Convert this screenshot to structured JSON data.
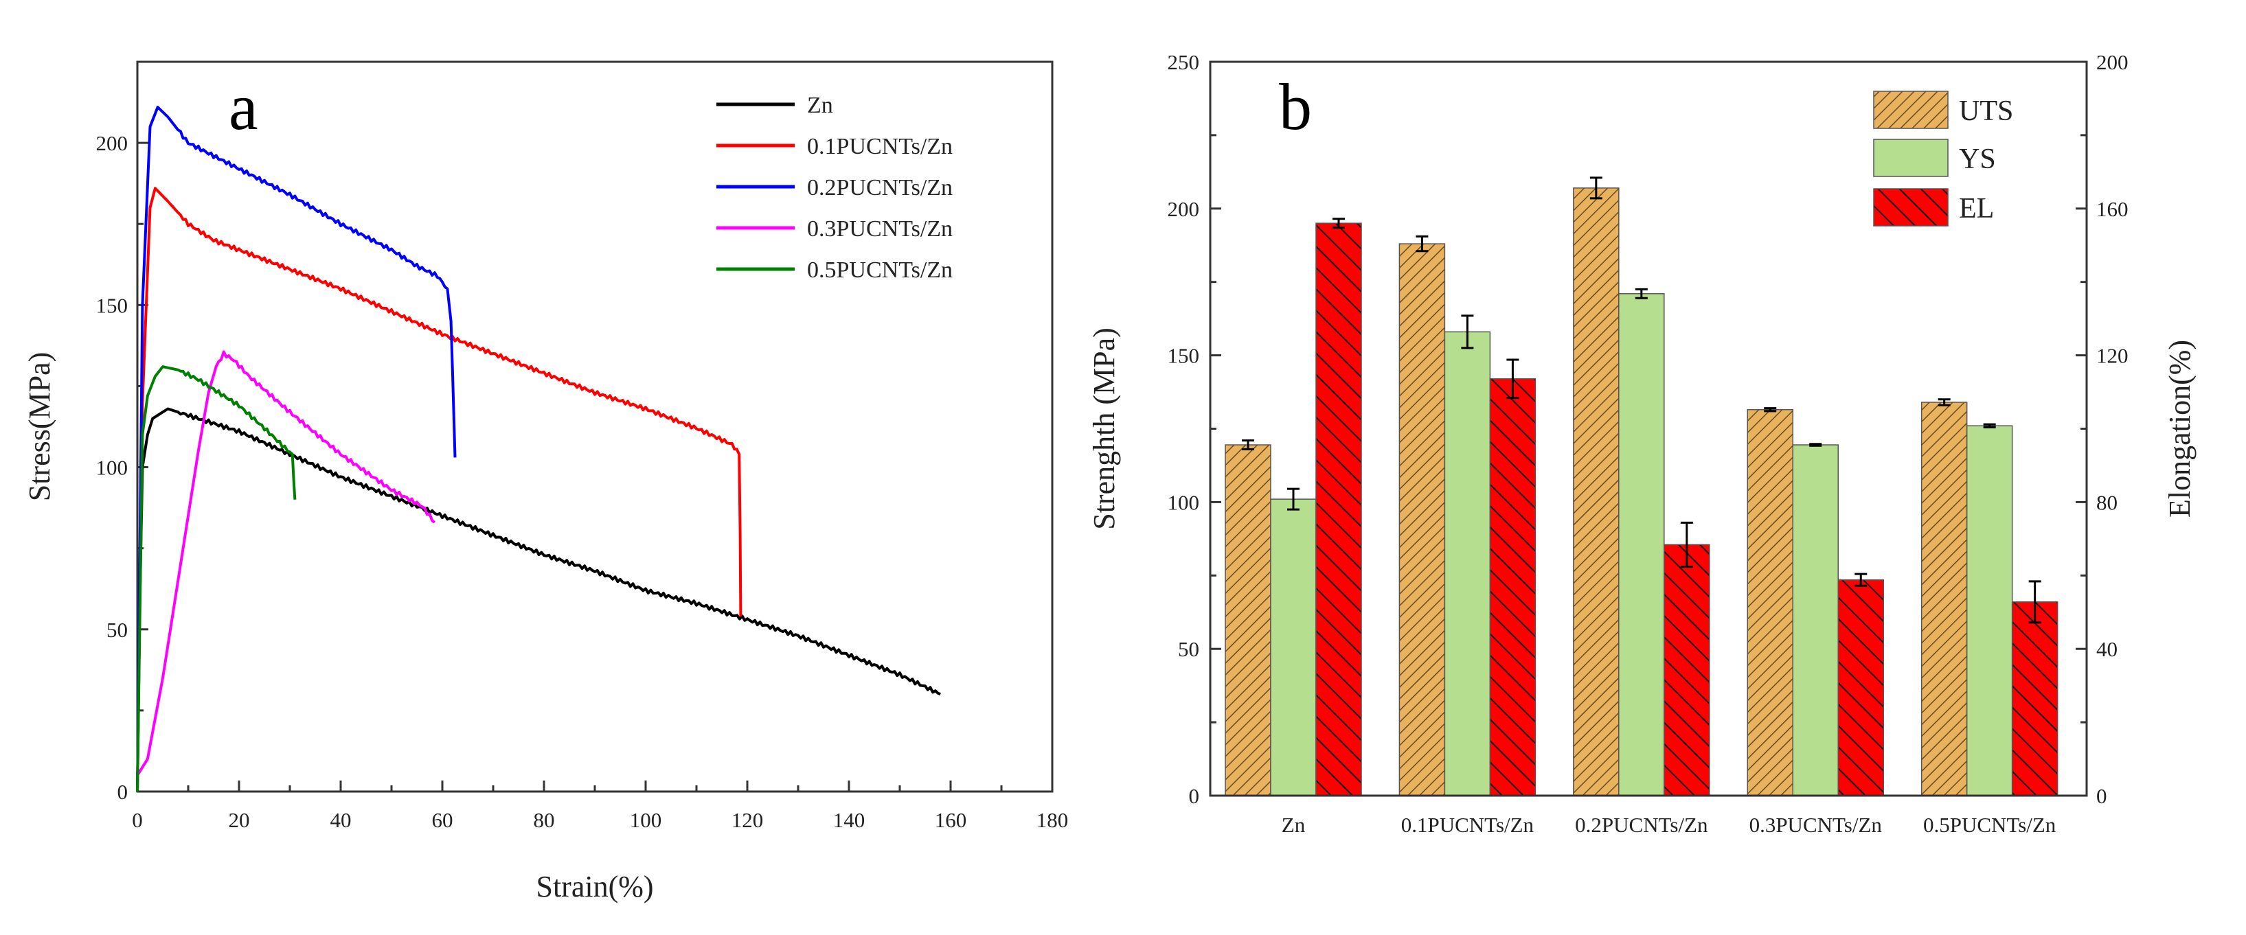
{
  "chart_data": [
    {
      "type": "line",
      "panel_label": "a",
      "xlabel": "Strain(%)",
      "ylabel": "Stress(MPa)",
      "xlim": [
        0,
        180
      ],
      "ylim": [
        0,
        225
      ],
      "xticks": [
        0,
        20,
        40,
        60,
        80,
        100,
        120,
        140,
        160,
        180
      ],
      "yticks": [
        0,
        50,
        100,
        150,
        200
      ],
      "legend_position": "top-right",
      "series": [
        {
          "name": "Zn",
          "color": "#000000",
          "points": [
            [
              0,
              0
            ],
            [
              0.5,
              60
            ],
            [
              1,
              100
            ],
            [
              2,
              110
            ],
            [
              3,
              115
            ],
            [
              6,
              118
            ],
            [
              10,
              116
            ],
            [
              20,
              111
            ],
            [
              30,
              104
            ],
            [
              40,
              97
            ],
            [
              50,
              91
            ],
            [
              60,
              85
            ],
            [
              70,
              79
            ],
            [
              80,
              73
            ],
            [
              90,
              68
            ],
            [
              100,
              62
            ],
            [
              110,
              58
            ],
            [
              120,
              53
            ],
            [
              130,
              48
            ],
            [
              140,
              42
            ],
            [
              150,
              36
            ],
            [
              158,
              30
            ]
          ]
        },
        {
          "name": "0.1PUCNTs/Zn",
          "color": "#FF0000",
          "points": [
            [
              0,
              0
            ],
            [
              1,
              120
            ],
            [
              2.5,
              180
            ],
            [
              3.5,
              186
            ],
            [
              6,
              182
            ],
            [
              10,
              175
            ],
            [
              15,
              170
            ],
            [
              20,
              167
            ],
            [
              30,
              161
            ],
            [
              40,
              155
            ],
            [
              50,
              148
            ],
            [
              60,
              141
            ],
            [
              70,
              135
            ],
            [
              80,
              129
            ],
            [
              90,
              123
            ],
            [
              100,
              118
            ],
            [
              110,
              112
            ],
            [
              117,
              107
            ],
            [
              118.4,
              104
            ],
            [
              118.6,
              80
            ],
            [
              118.7,
              54
            ]
          ]
        },
        {
          "name": "0.2PUCNTs/Zn",
          "color": "#0000FF",
          "points": [
            [
              0,
              0
            ],
            [
              1,
              150
            ],
            [
              2.5,
              205
            ],
            [
              4,
              211
            ],
            [
              6,
              208
            ],
            [
              10,
              200
            ],
            [
              20,
              192
            ],
            [
              30,
              184
            ],
            [
              40,
              175
            ],
            [
              50,
              167
            ],
            [
              55,
              162
            ],
            [
              59,
              159
            ],
            [
              61,
              155
            ],
            [
              61.7,
              145
            ],
            [
              62,
              130
            ],
            [
              62.5,
              103
            ]
          ]
        },
        {
          "name": "0.3PUCNTs/Zn",
          "color": "#FF00FF",
          "points": [
            [
              0,
              5
            ],
            [
              2,
              10
            ],
            [
              5,
              35
            ],
            [
              8,
              65
            ],
            [
              10,
              85
            ],
            [
              12,
              105
            ],
            [
              14,
              123
            ],
            [
              15.5,
              131
            ],
            [
              17,
              135
            ],
            [
              19,
              133
            ],
            [
              22,
              128
            ],
            [
              30,
              117
            ],
            [
              40,
              104
            ],
            [
              50,
              93
            ],
            [
              56,
              88
            ],
            [
              58.5,
              83
            ]
          ]
        },
        {
          "name": "0.5PUCNTs/Zn",
          "color": "#008000",
          "points": [
            [
              0,
              0
            ],
            [
              1,
              110
            ],
            [
              2,
              122
            ],
            [
              3.5,
              128
            ],
            [
              5,
              131
            ],
            [
              8,
              130
            ],
            [
              12,
              127
            ],
            [
              15,
              124
            ],
            [
              20,
              119
            ],
            [
              25,
              112
            ],
            [
              29,
              106
            ],
            [
              30.5,
              104
            ],
            [
              30.8,
              95
            ],
            [
              31,
              90
            ]
          ]
        }
      ]
    },
    {
      "type": "bar",
      "panel_label": "b",
      "categories": [
        "Zn",
        "0.1PUCNTs/Zn",
        "0.2PUCNTs/Zn",
        "0.3PUCNTs/Zn",
        "0.5PUCNTs/Zn"
      ],
      "ylabel": "Strenghth (MPa)",
      "y2label": "Elongation(%)",
      "ylim": [
        0,
        250
      ],
      "y2lim": [
        0,
        200
      ],
      "yticks": [
        0,
        50,
        100,
        150,
        200,
        250
      ],
      "y2ticks": [
        0,
        40,
        80,
        120,
        160,
        200
      ],
      "legend_position": "top-right",
      "series": [
        {
          "name": "UTS",
          "axis": "left",
          "color": "#E8B25E",
          "pattern": "forward-hatch",
          "values": [
            119.5,
            188,
            207,
            131.5,
            134
          ],
          "errors": [
            1.5,
            2.5,
            3.5,
            0.5,
            1
          ]
        },
        {
          "name": "YS",
          "axis": "left",
          "color": "#B5DF8E",
          "pattern": "solid",
          "values": [
            101,
            158,
            171,
            119.5,
            126
          ],
          "errors": [
            3.5,
            5.5,
            1.5,
            0.3,
            0.5
          ]
        },
        {
          "name": "EL",
          "axis": "right",
          "color": "#FF0000",
          "pattern": "back-hatch",
          "values": [
            156,
            113.6,
            68.4,
            58.8,
            52.8
          ],
          "errors": [
            1.2,
            5.2,
            6,
            1.6,
            5.6
          ]
        }
      ]
    }
  ]
}
